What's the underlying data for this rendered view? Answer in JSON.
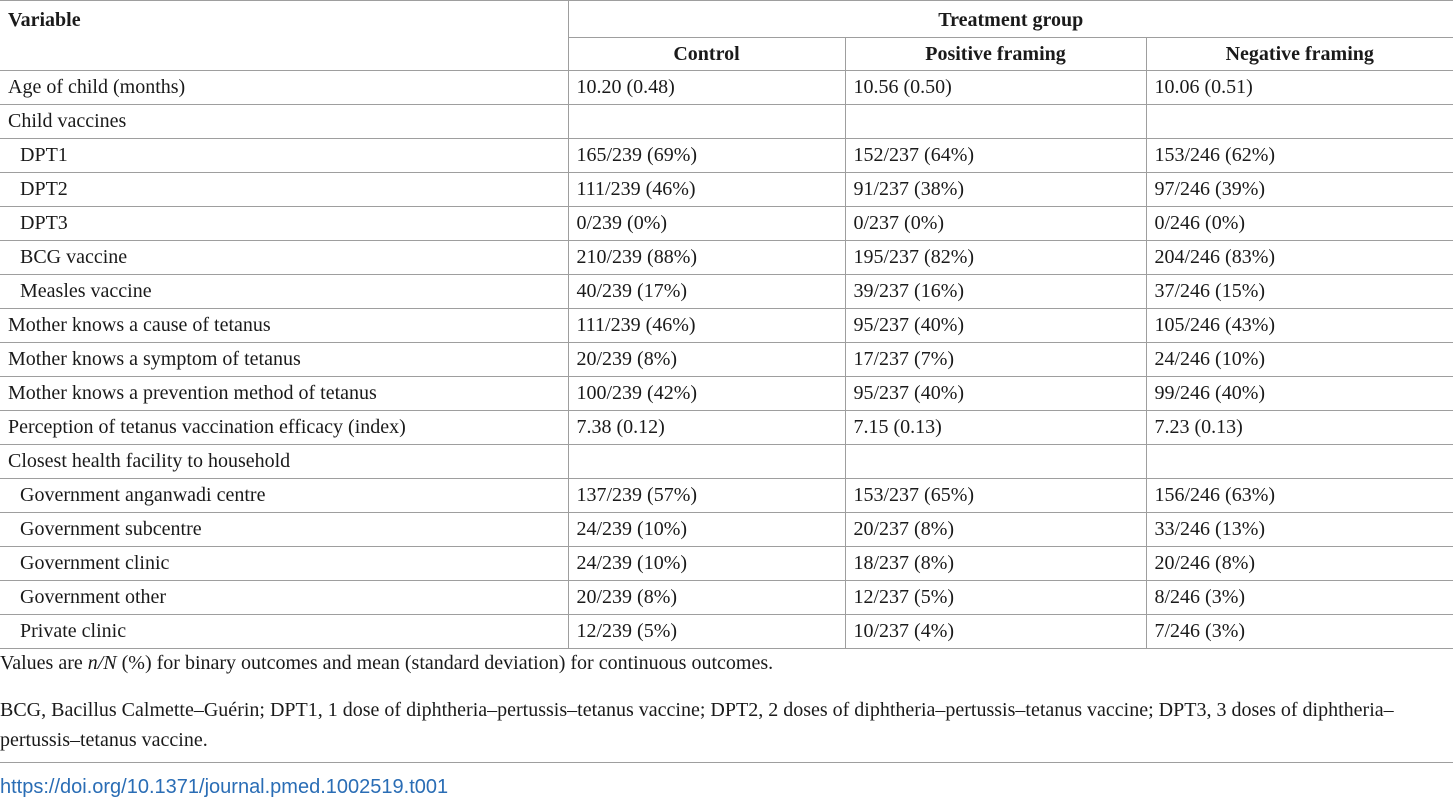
{
  "table": {
    "header": {
      "variable": "Variable",
      "treatment_group": "Treatment group",
      "columns": [
        "Control",
        "Positive framing",
        "Negative framing"
      ]
    },
    "rows": [
      {
        "label": "Age of child (months)",
        "indent": false,
        "values": [
          "10.20 (0.48)",
          "10.56 (0.50)",
          "10.06 (0.51)"
        ]
      },
      {
        "label": "Child vaccines",
        "indent": false,
        "values": [
          "",
          "",
          ""
        ]
      },
      {
        "label": "DPT1",
        "indent": true,
        "values": [
          "165/239 (69%)",
          "152/237 (64%)",
          "153/246 (62%)"
        ]
      },
      {
        "label": "DPT2",
        "indent": true,
        "values": [
          "111/239 (46%)",
          "91/237 (38%)",
          "97/246 (39%)"
        ]
      },
      {
        "label": "DPT3",
        "indent": true,
        "values": [
          "0/239 (0%)",
          "0/237 (0%)",
          "0/246 (0%)"
        ]
      },
      {
        "label": "BCG vaccine",
        "indent": true,
        "values": [
          "210/239 (88%)",
          "195/237 (82%)",
          "204/246 (83%)"
        ]
      },
      {
        "label": "Measles vaccine",
        "indent": true,
        "values": [
          "40/239 (17%)",
          "39/237 (16%)",
          "37/246 (15%)"
        ]
      },
      {
        "label": "Mother knows a cause of tetanus",
        "indent": false,
        "values": [
          "111/239 (46%)",
          "95/237 (40%)",
          "105/246 (43%)"
        ]
      },
      {
        "label": "Mother knows a symptom of tetanus",
        "indent": false,
        "values": [
          "20/239 (8%)",
          "17/237 (7%)",
          "24/246 (10%)"
        ]
      },
      {
        "label": "Mother knows a prevention method of tetanus",
        "indent": false,
        "values": [
          "100/239 (42%)",
          "95/237 (40%)",
          "99/246 (40%)"
        ]
      },
      {
        "label": "Perception of tetanus vaccination efficacy (index)",
        "indent": false,
        "values": [
          "7.38 (0.12)",
          "7.15 (0.13)",
          "7.23 (0.13)"
        ]
      },
      {
        "label": "Closest health facility to household",
        "indent": false,
        "values": [
          "",
          "",
          ""
        ]
      },
      {
        "label": "Government anganwadi centre",
        "indent": true,
        "values": [
          "137/239 (57%)",
          "153/237 (65%)",
          "156/246 (63%)"
        ]
      },
      {
        "label": "Government subcentre",
        "indent": true,
        "values": [
          "24/239 (10%)",
          "20/237 (8%)",
          "33/246 (13%)"
        ]
      },
      {
        "label": "Government clinic",
        "indent": true,
        "values": [
          "24/239 (10%)",
          "18/237 (8%)",
          "20/246 (8%)"
        ]
      },
      {
        "label": "Government other",
        "indent": true,
        "values": [
          "20/239 (8%)",
          "12/237 (5%)",
          "8/246 (3%)"
        ]
      },
      {
        "label": "Private clinic",
        "indent": true,
        "values": [
          "12/239 (5%)",
          "10/237 (4%)",
          "7/246 (3%)"
        ]
      }
    ]
  },
  "notes": {
    "values_note_prefix": "Values are ",
    "values_note_nN": "n/N",
    "values_note_rest": " (%) for binary outcomes and mean (standard deviation) for continuous outcomes.",
    "abbreviations": "BCG, Bacillus Calmette–Guérin; DPT1, 1 dose of diphtheria–pertussis–tetanus vaccine; DPT2, 2 doses of diphtheria–pertussis–tetanus vaccine; DPT3, 3 doses of diphtheria–pertussis–tetanus vaccine."
  },
  "doi": "https://doi.org/10.1371/journal.pmed.1002519.t001"
}
